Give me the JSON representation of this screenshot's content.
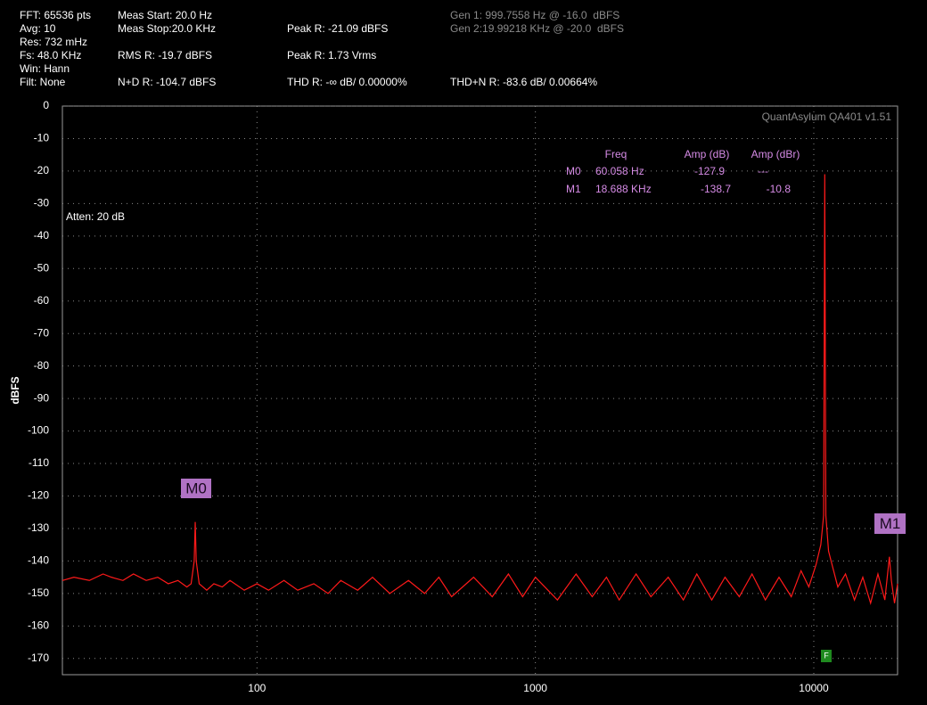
{
  "header": [
    "FFT: 65536 pts",
    "Avg: 10",
    "Res: 732 mHz",
    "Fs: 48.0 KHz",
    "Win: Hann",
    "Filt: None",
    "Meas Start: 20.0 Hz",
    "Meas Stop:20.0 KHz",
    "RMS R: -19.7 dBFS",
    "N+D R: -104.7 dBFS",
    "Peak R: -21.09 dBFS",
    "Peak R: 1.73 Vrms",
    "THD R: -∞ dB/ 0.00000%",
    "Gen 1: 999.7558 Hz @ -16.0  dBFS",
    "Gen 2:19.99218 KHz @ -20.0  dBFS",
    "THD+N R: -83.6 dB/ 0.00664%"
  ],
  "chart_data": {
    "type": "line",
    "ylabel": "dBFS",
    "watermark": "QuantAsylum QA401 v1.51",
    "annotation": "Atten: 20 dB",
    "xscale": "log",
    "xlim": [
      20,
      20000
    ],
    "xticks": [
      100,
      1000,
      10000
    ],
    "ylim": [
      -175,
      0
    ],
    "yticks": [
      0,
      -10,
      -20,
      -30,
      -40,
      -50,
      -60,
      -70,
      -80,
      -90,
      -100,
      -110,
      -120,
      -130,
      -140,
      -150,
      -160,
      -170
    ],
    "grid": true,
    "marker_table": {
      "headers": [
        "Freq",
        "Amp (dB)",
        "Amp (dBr)"
      ],
      "rows": [
        [
          "M0",
          "60.058 Hz",
          "-127.9",
          "---"
        ],
        [
          "M1",
          "18.688 KHz",
          "-138.7",
          "-10.8"
        ]
      ]
    },
    "marker_labels": [
      "M0",
      "M1"
    ],
    "f_marker": "F",
    "series": [
      {
        "name": "R",
        "color": "#ff1a1a",
        "x": [
          20,
          22,
          25,
          28,
          30,
          33,
          36,
          40,
          44,
          48,
          52,
          56,
          58,
          59.5,
          60,
          60.5,
          62,
          66,
          70,
          75,
          80,
          90,
          100,
          110,
          125,
          140,
          160,
          180,
          200,
          230,
          260,
          300,
          350,
          400,
          450,
          500,
          600,
          700,
          800,
          900,
          1000,
          1200,
          1400,
          1600,
          1800,
          2000,
          2300,
          2600,
          3000,
          3400,
          3800,
          4300,
          4800,
          5400,
          6000,
          6700,
          7500,
          8300,
          9000,
          9600,
          10200,
          10600,
          10850,
          10950,
          11050,
          11300,
          11700,
          12200,
          13000,
          14000,
          15000,
          16000,
          17000,
          18000,
          18688,
          19000,
          19500,
          20000
        ],
        "values": [
          -146,
          -145,
          -146,
          -144,
          -145,
          -146,
          -144,
          -146,
          -145,
          -147,
          -146,
          -148,
          -147,
          -140,
          -128,
          -140,
          -147,
          -149,
          -147,
          -148,
          -146,
          -149,
          -147,
          -149,
          -146,
          -149,
          -147,
          -150,
          -146,
          -149,
          -145,
          -150,
          -146,
          -150,
          -145,
          -151,
          -145,
          -151,
          -144,
          -151,
          -145,
          -152,
          -144,
          -151,
          -145,
          -152,
          -144,
          -151,
          -145,
          -152,
          -144,
          -152,
          -145,
          -151,
          -144,
          -152,
          -145,
          -151,
          -143,
          -148,
          -141,
          -135,
          -126,
          -21,
          -126,
          -137,
          -142,
          -148,
          -144,
          -152,
          -145,
          -153,
          -144,
          -152,
          -138.7,
          -146,
          -153,
          -147
        ]
      }
    ]
  }
}
